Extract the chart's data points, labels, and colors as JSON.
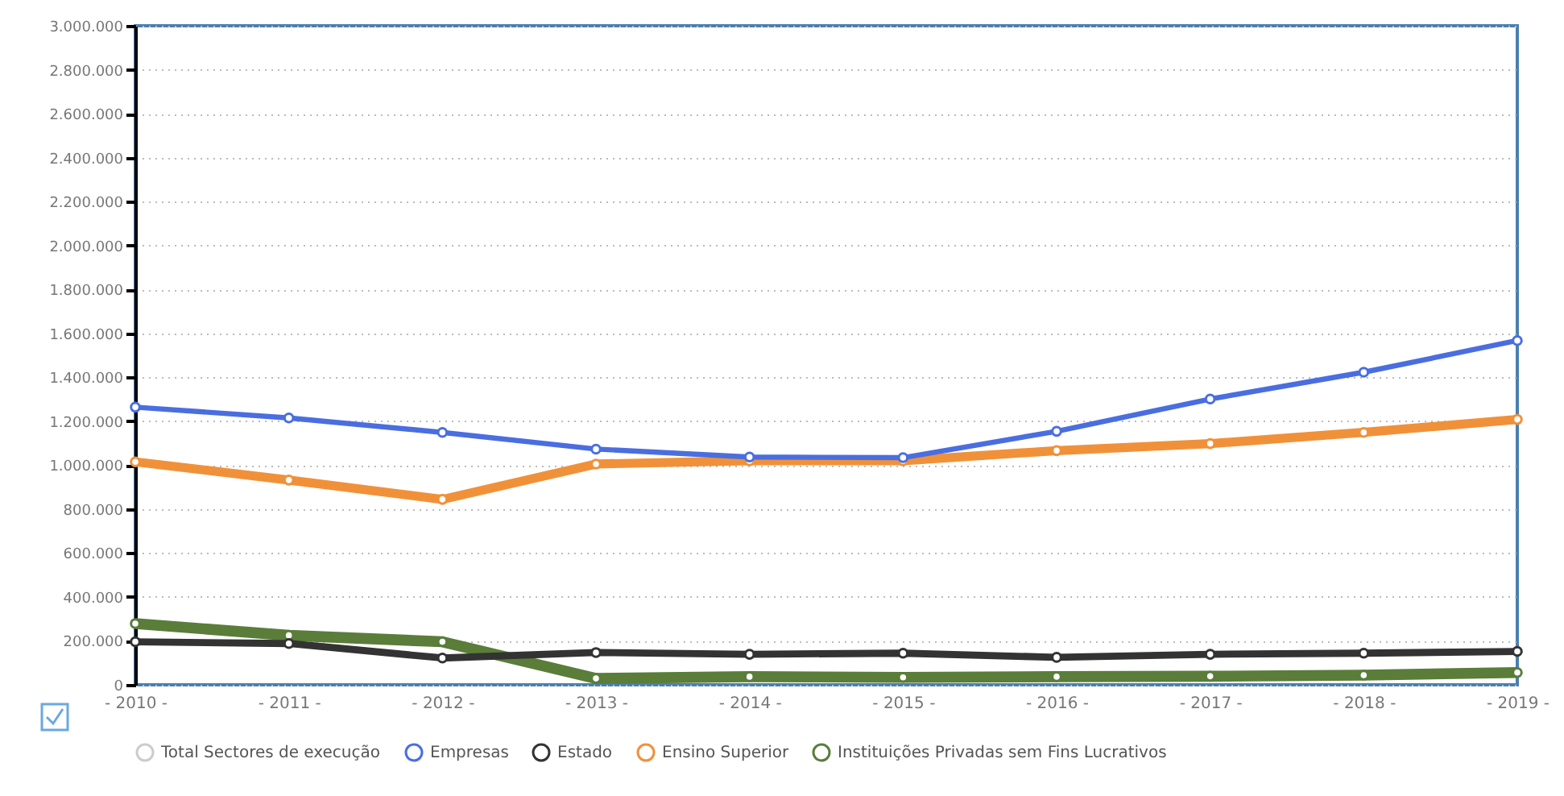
{
  "chart_data": {
    "type": "line",
    "categories": [
      "- 2010 -",
      "- 2011 -",
      "- 2012 -",
      "- 2013 -",
      "- 2014 -",
      "- 2015 -",
      "- 2016 -",
      "- 2017 -",
      "- 2018 -",
      "- 2019 -"
    ],
    "series": [
      {
        "name": "Total Sectores de execução",
        "color": "#cccccc",
        "values": [
          null,
          null,
          null,
          null,
          null,
          null,
          null,
          null,
          null,
          null
        ]
      },
      {
        "name": "Empresas",
        "color": "#4a6ee0",
        "values": [
          1264000,
          1215000,
          1149000,
          1073000,
          1037000,
          1034000,
          1154000,
          1301000,
          1423000,
          1567000
        ]
      },
      {
        "name": "Estado",
        "color": "#333333",
        "values": [
          196000,
          188000,
          122000,
          147000,
          139000,
          144000,
          125000,
          139000,
          144000,
          152000
        ]
      },
      {
        "name": "Ensino Superior",
        "color": "#f0913a",
        "values": [
          1015000,
          932000,
          844000,
          1005000,
          1020000,
          1020000,
          1066000,
          1098000,
          1149000,
          1208000
        ]
      },
      {
        "name": "Instituições Privadas sem Fins Lucrativos",
        "color": "#5a7d3a",
        "values": [
          279000,
          225000,
          196000,
          29000,
          37000,
          34000,
          37000,
          39000,
          44000,
          56000
        ]
      }
    ],
    "ylim": [
      0,
      3000000
    ],
    "yticks": [
      {
        "value": 0,
        "label": "0"
      },
      {
        "value": 200000,
        "label": "200.000"
      },
      {
        "value": 400000,
        "label": "400.000"
      },
      {
        "value": 600000,
        "label": "600.000"
      },
      {
        "value": 800000,
        "label": "800.000"
      },
      {
        "value": 1000000,
        "label": "1.000.000"
      },
      {
        "value": 1200000,
        "label": "1.200.000"
      },
      {
        "value": 1400000,
        "label": "1.400.000"
      },
      {
        "value": 1600000,
        "label": "1.600.000"
      },
      {
        "value": 1800000,
        "label": "1.800.000"
      },
      {
        "value": 2000000,
        "label": "2.000.000"
      },
      {
        "value": 2200000,
        "label": "2.200.000"
      },
      {
        "value": 2400000,
        "label": "2.400.000"
      },
      {
        "value": 2600000,
        "label": "2.600.000"
      },
      {
        "value": 2800000,
        "label": "2.800.000"
      },
      {
        "value": 3000000,
        "label": "3.000.000"
      }
    ],
    "grid": "y",
    "legend": "bottom",
    "marker": "circle",
    "line_style": "solid"
  }
}
